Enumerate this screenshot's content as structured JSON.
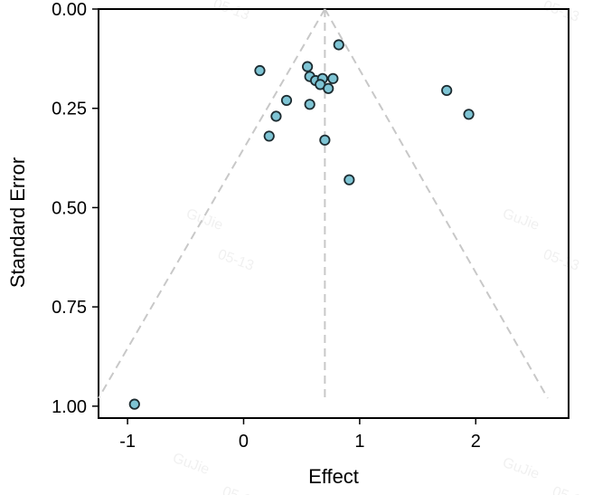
{
  "chart_data": {
    "type": "scatter",
    "subtype": "funnel-plot",
    "title": "",
    "xlabel": "Effect",
    "ylabel": "Standard Error",
    "xlim": [
      -1.25,
      2.8
    ],
    "ylim": [
      0,
      1.03
    ],
    "y_inverted": true,
    "grid": false,
    "x_ticks": [
      -1,
      0,
      1,
      2
    ],
    "x_tick_labels": [
      "-1",
      "0",
      "1",
      "2"
    ],
    "y_ticks": [
      0.0,
      0.25,
      0.5,
      0.75,
      1.0
    ],
    "y_tick_labels": [
      "0.00",
      "0.25",
      "0.50",
      "0.75",
      "1.00"
    ],
    "pooled_effect": 0.7,
    "funnel": {
      "apex": [
        0.7,
        0.0
      ],
      "left_base": [
        -1.25,
        0.98
      ],
      "right_base": [
        2.62,
        0.98
      ],
      "center_line": [
        [
          0.7,
          0.0
        ],
        [
          0.7,
          0.99
        ]
      ]
    },
    "points": [
      {
        "x": 0.82,
        "y": 0.09
      },
      {
        "x": 0.55,
        "y": 0.145
      },
      {
        "x": 0.14,
        "y": 0.155
      },
      {
        "x": 0.57,
        "y": 0.17
      },
      {
        "x": 0.62,
        "y": 0.18
      },
      {
        "x": 0.68,
        "y": 0.175
      },
      {
        "x": 0.77,
        "y": 0.175
      },
      {
        "x": 0.66,
        "y": 0.19
      },
      {
        "x": 0.73,
        "y": 0.2
      },
      {
        "x": 1.75,
        "y": 0.205
      },
      {
        "x": 0.37,
        "y": 0.23
      },
      {
        "x": 0.57,
        "y": 0.24
      },
      {
        "x": 1.94,
        "y": 0.265
      },
      {
        "x": 0.28,
        "y": 0.27
      },
      {
        "x": 0.22,
        "y": 0.32
      },
      {
        "x": 0.7,
        "y": 0.33
      },
      {
        "x": 0.91,
        "y": 0.43
      },
      {
        "x": -0.94,
        "y": 0.995
      }
    ],
    "point_color": "#7ec4d4",
    "point_edge_color": "#1c2b30",
    "funnel_line_color": "#c8c8c8",
    "watermark": {
      "text": "GuJie",
      "date": "05-13"
    }
  }
}
